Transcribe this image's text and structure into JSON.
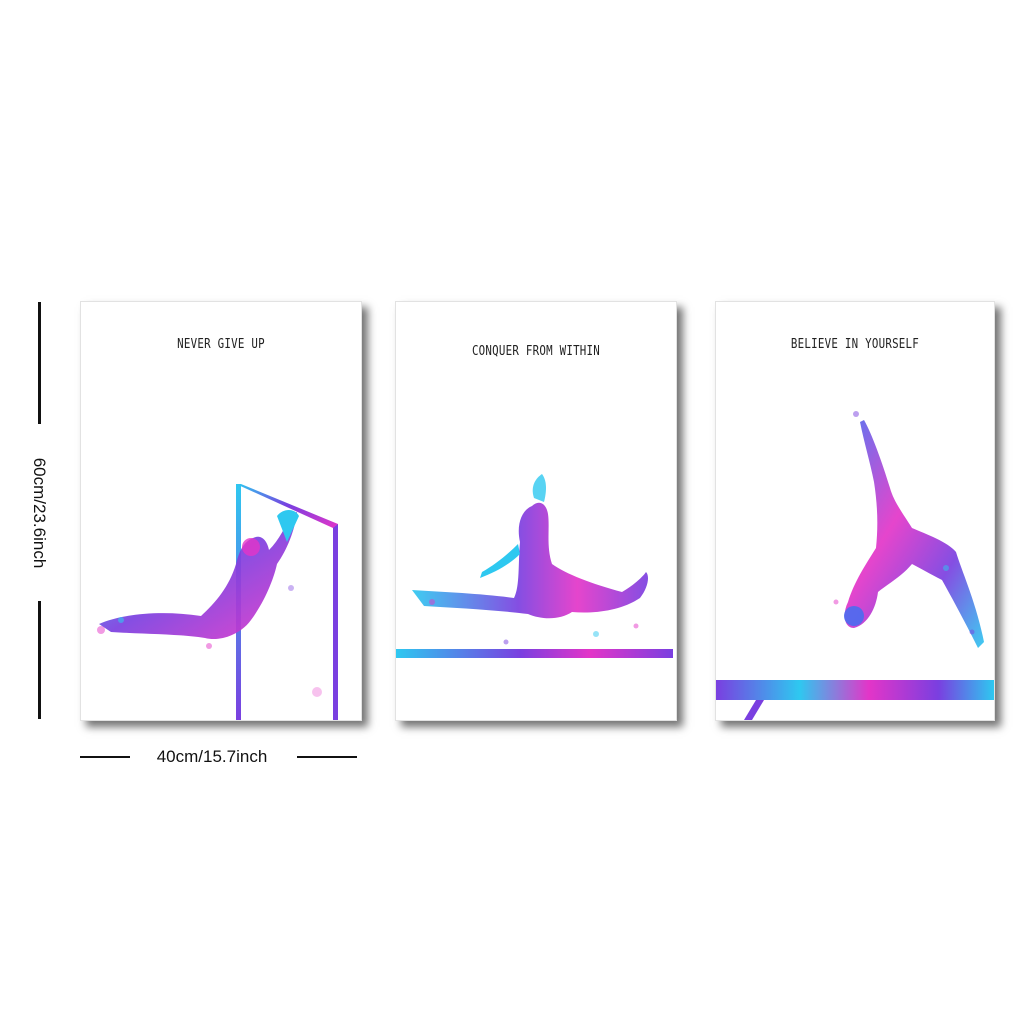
{
  "posters": [
    {
      "caption": "NEVER GIVE UP"
    },
    {
      "caption": "CONQUER FROM WITHIN"
    },
    {
      "caption": "BELIEVE IN YOURSELF"
    }
  ],
  "dimensions": {
    "height_label": "60cm/23.6inch",
    "width_label": "40cm/15.7inch"
  },
  "colors": {
    "cyan": "#2ec8f0",
    "purple": "#7a3fe0",
    "magenta": "#e335c8",
    "blue": "#4a6cf0"
  }
}
